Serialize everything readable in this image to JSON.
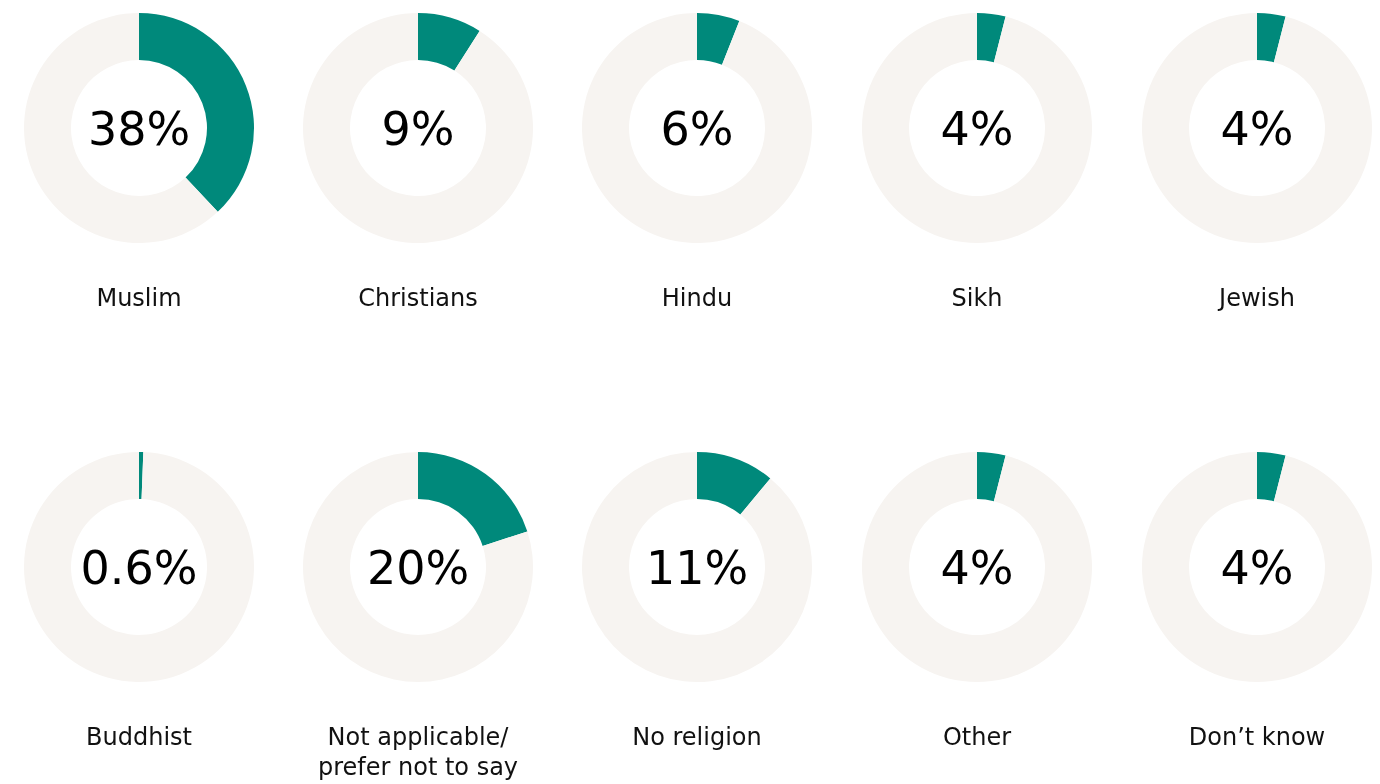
{
  "chart_data": [
    {
      "type": "donut",
      "xlabel": "Muslim",
      "categories": [
        null,
        null
      ],
      "values": [
        38,
        62
      ],
      "colors": [
        "#00897b",
        "#f7f4f1"
      ],
      "annotations": [
        "38%"
      ]
    },
    {
      "type": "donut",
      "xlabel": "Christians",
      "categories": [
        null,
        null
      ],
      "values": [
        9,
        91
      ],
      "colors": [
        "#00897b",
        "#f7f4f1"
      ],
      "annotations": [
        "9%"
      ]
    },
    {
      "type": "donut",
      "xlabel": "Hindu",
      "categories": [
        null,
        null
      ],
      "values": [
        6,
        94
      ],
      "colors": [
        "#00897b",
        "#f7f4f1"
      ],
      "annotations": [
        "6%"
      ]
    },
    {
      "type": "donut",
      "xlabel": "Sikh",
      "categories": [
        null,
        null
      ],
      "values": [
        4,
        96
      ],
      "colors": [
        "#00897b",
        "#f7f4f1"
      ],
      "annotations": [
        "4%"
      ]
    },
    {
      "type": "donut",
      "xlabel": "Jewish",
      "categories": [
        null,
        null
      ],
      "values": [
        4,
        96
      ],
      "colors": [
        "#00897b",
        "#f7f4f1"
      ],
      "annotations": [
        "4%"
      ]
    },
    {
      "type": "donut",
      "xlabel": "Buddhist",
      "categories": [
        null,
        null
      ],
      "values": [
        0.6,
        99.4
      ],
      "colors": [
        "#00897b",
        "#f7f4f1"
      ],
      "annotations": [
        "0.6%"
      ]
    },
    {
      "type": "donut",
      "xlabel": "Not applicable/ prefer not to say",
      "categories": [
        null,
        null
      ],
      "values": [
        20,
        80
      ],
      "colors": [
        "#00897b",
        "#f7f4f1"
      ],
      "annotations": [
        "20%"
      ]
    },
    {
      "type": "donut",
      "xlabel": "No religion",
      "categories": [
        null,
        null
      ],
      "values": [
        11,
        89
      ],
      "colors": [
        "#00897b",
        "#f7f4f1"
      ],
      "annotations": [
        "11%"
      ]
    },
    {
      "type": "donut",
      "xlabel": "Other",
      "categories": [
        null,
        null
      ],
      "values": [
        4,
        96
      ],
      "colors": [
        "#00897b",
        "#f7f4f1"
      ],
      "annotations": [
        "4%"
      ]
    },
    {
      "type": "donut",
      "xlabel": "Don’t know",
      "categories": [
        null,
        null
      ],
      "values": [
        4,
        96
      ],
      "colors": [
        "#00897b",
        "#f7f4f1"
      ],
      "annotations": [
        "4%"
      ]
    }
  ]
}
